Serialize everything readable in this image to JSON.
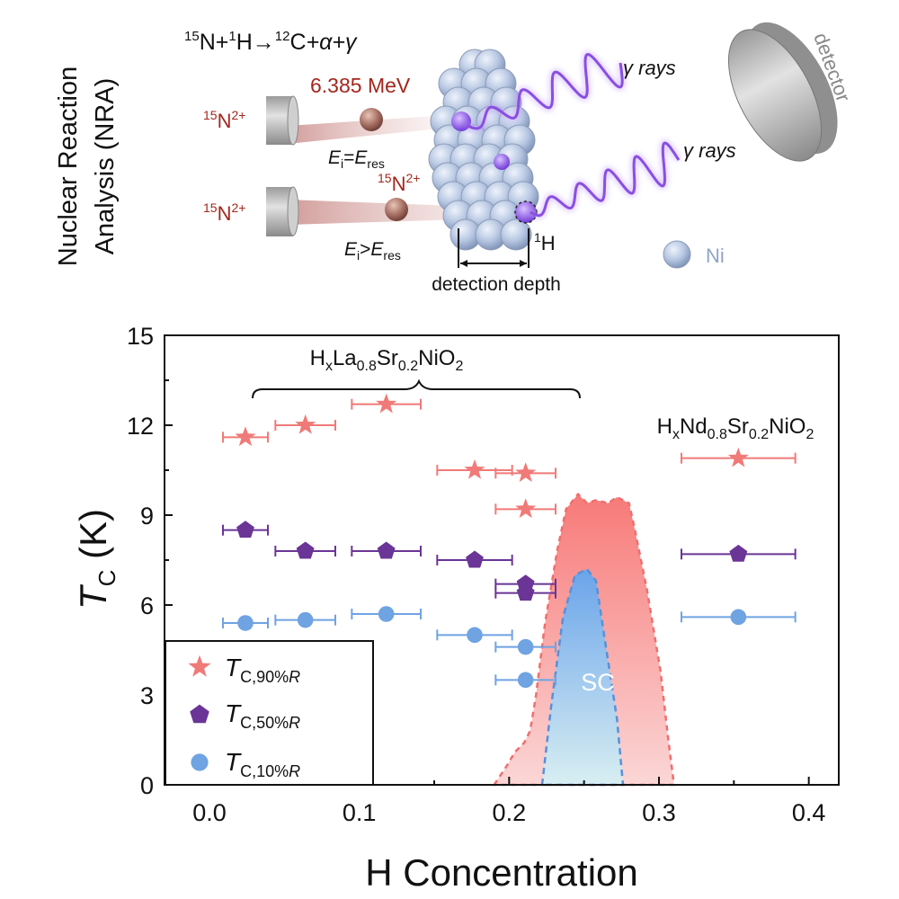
{
  "schematic": {
    "reaction": {
      "n_mass": "15",
      "n_sym": "N",
      "plus1": "+",
      "h_mass": "1",
      "h_sym": "H",
      "arrow": "→",
      "c_mass": "12",
      "c_sym": "C",
      "rest": "+α+γ"
    },
    "side_title_line1": "Nuclear Reaction",
    "side_title_line2": "Analysis (NRA)",
    "beam_energy": "6.385 MeV",
    "ion_mass": "15",
    "ion_sym": "N",
    "ion_charge": "2+",
    "cond_resonance": {
      "e": "E",
      "i": "i",
      "op": "=",
      "e2": "E",
      "res": "res"
    },
    "cond_above": {
      "e": "E",
      "i": "i",
      "op": ">",
      "e2": "E",
      "res": "res"
    },
    "gamma_label": "γ rays",
    "detector_label": "detector",
    "h_mass": "1",
    "h_sym": "H",
    "ni_label": "Ni",
    "depth_label": "detection depth",
    "colors": {
      "ion": "#a3261c",
      "ni": "#b7c7e2",
      "gamma": "#8a4fe0"
    }
  },
  "chart_data": {
    "type": "scatter",
    "xlabel": "H Concentration",
    "ylabel_main": "T",
    "ylabel_sub": "C",
    "ylabel_unit": " (K)",
    "xlim": [
      -0.03,
      0.42
    ],
    "ylim": [
      0,
      15
    ],
    "xticks": [
      0.0,
      0.1,
      0.2,
      0.3,
      0.4
    ],
    "xtick_labels": [
      "0.0",
      "0.1",
      "0.2",
      "0.3",
      "0.4"
    ],
    "yticks": [
      0,
      3,
      6,
      9,
      12,
      15
    ],
    "ytick_labels": [
      "0",
      "3",
      "6",
      "9",
      "12",
      "15"
    ],
    "annotations": {
      "la": {
        "h": "H",
        "x": "x",
        "la": "La",
        "la_n": "0.8",
        "sr": "Sr",
        "sr_n": "0.2",
        "rest": "NiO",
        "o_n": "2"
      },
      "nd": {
        "h": "H",
        "x": "x",
        "nd": "Nd",
        "nd_n": "0.8",
        "sr": "Sr",
        "sr_n": "0.2",
        "rest": "NiO",
        "o_n": "2"
      },
      "sc": "SC"
    },
    "series": [
      {
        "name": "T_C,90%R",
        "legend_main": "T",
        "legend_sub": "C,90%",
        "legend_r": "R",
        "marker": "star",
        "color": "#f07a78",
        "points": [
          {
            "x": 0.024,
            "y": 11.6,
            "xerr": 0.015
          },
          {
            "x": 0.064,
            "y": 12.0,
            "xerr": 0.02
          },
          {
            "x": 0.118,
            "y": 12.7,
            "xerr": 0.023
          },
          {
            "x": 0.177,
            "y": 10.5,
            "xerr": 0.025
          },
          {
            "x": 0.211,
            "y": 10.4,
            "xerr": 0.02
          },
          {
            "x": 0.211,
            "y": 9.2,
            "xerr": 0.02
          },
          {
            "x": 0.353,
            "y": 10.9,
            "xerr": 0.038
          }
        ]
      },
      {
        "name": "T_C,50%R",
        "legend_main": "T",
        "legend_sub": "C,50%",
        "legend_r": "R",
        "marker": "pentagon",
        "color": "#6a3596",
        "points": [
          {
            "x": 0.024,
            "y": 8.5,
            "xerr": 0.015
          },
          {
            "x": 0.064,
            "y": 7.8,
            "xerr": 0.02
          },
          {
            "x": 0.118,
            "y": 7.8,
            "xerr": 0.023
          },
          {
            "x": 0.177,
            "y": 7.5,
            "xerr": 0.025
          },
          {
            "x": 0.211,
            "y": 6.7,
            "xerr": 0.02
          },
          {
            "x": 0.211,
            "y": 6.4,
            "xerr": 0.02
          },
          {
            "x": 0.353,
            "y": 7.7,
            "xerr": 0.038
          }
        ]
      },
      {
        "name": "T_C,10%R",
        "legend_main": "T",
        "legend_sub": "C,10%",
        "legend_r": "R",
        "marker": "circle",
        "color": "#6fa3e2",
        "points": [
          {
            "x": 0.024,
            "y": 5.4,
            "xerr": 0.015
          },
          {
            "x": 0.064,
            "y": 5.5,
            "xerr": 0.02
          },
          {
            "x": 0.118,
            "y": 5.7,
            "xerr": 0.023
          },
          {
            "x": 0.177,
            "y": 5.0,
            "xerr": 0.025
          },
          {
            "x": 0.211,
            "y": 4.6,
            "xerr": 0.02
          },
          {
            "x": 0.211,
            "y": 3.5,
            "xerr": 0.02
          },
          {
            "x": 0.353,
            "y": 5.6,
            "xerr": 0.038
          }
        ]
      }
    ],
    "sc_outer": [
      [
        0.19,
        0
      ],
      [
        0.198,
        0.6
      ],
      [
        0.204,
        1.1
      ],
      [
        0.21,
        1.4
      ],
      [
        0.214,
        1.8
      ],
      [
        0.218,
        3.0
      ],
      [
        0.224,
        5.4
      ],
      [
        0.232,
        7.8
      ],
      [
        0.238,
        9.2
      ],
      [
        0.246,
        9.7
      ],
      [
        0.252,
        9.4
      ],
      [
        0.258,
        9.5
      ],
      [
        0.266,
        9.4
      ],
      [
        0.272,
        9.6
      ],
      [
        0.28,
        9.4
      ],
      [
        0.284,
        8.5
      ],
      [
        0.292,
        6.5
      ],
      [
        0.301,
        3.8
      ],
      [
        0.306,
        1.6
      ],
      [
        0.31,
        0
      ]
    ],
    "sc_inner": [
      [
        0.222,
        0
      ],
      [
        0.228,
        2.6
      ],
      [
        0.236,
        5.6
      ],
      [
        0.244,
        7.0
      ],
      [
        0.252,
        7.2
      ],
      [
        0.258,
        6.8
      ],
      [
        0.264,
        4.8
      ],
      [
        0.272,
        2.2
      ],
      [
        0.276,
        0
      ]
    ]
  }
}
